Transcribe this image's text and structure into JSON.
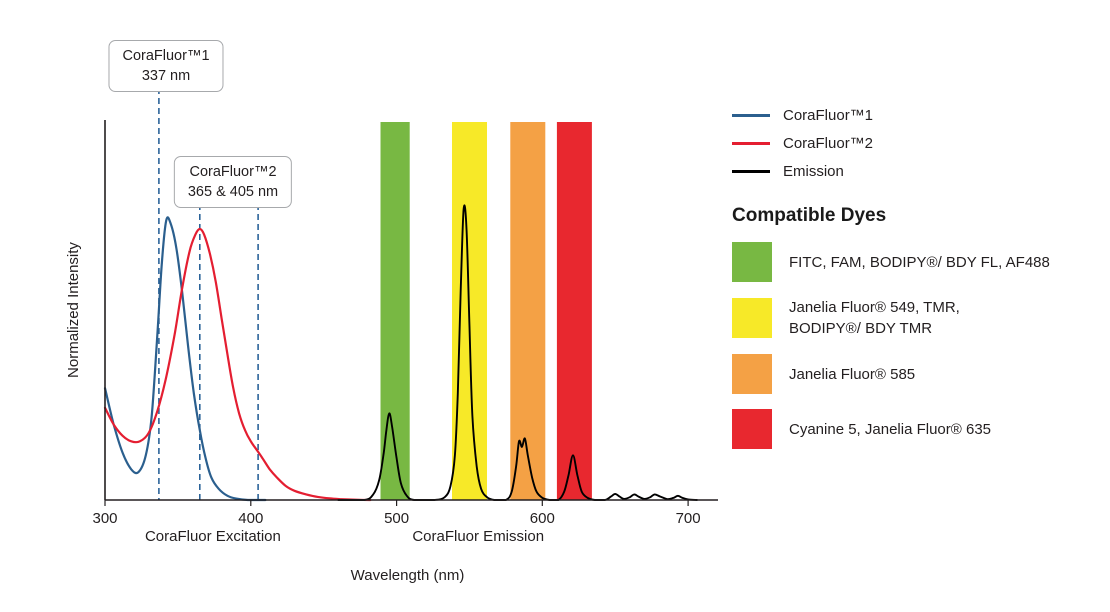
{
  "legend": {
    "items": [
      {
        "label": "CoraFluor™1",
        "color": "#2b5f8e"
      },
      {
        "label": "CoraFluor™2",
        "color": "#e41e31"
      },
      {
        "label": "Emission",
        "color": "#000000"
      }
    ]
  },
  "compatible_dyes": {
    "title": "Compatible Dyes",
    "items": [
      {
        "color": "#78b843",
        "lines": [
          "FITC, FAM, BODIPY®/ BDY FL, AF488"
        ]
      },
      {
        "color": "#f7e928",
        "lines": [
          "Janelia Fluor® 549, TMR,",
          "BODIPY®/ BDY TMR"
        ]
      },
      {
        "color": "#f4a145",
        "lines": [
          "Janelia Fluor® 585"
        ]
      },
      {
        "color": "#e8282f",
        "lines": [
          "Cyanine 5, Janelia Fluor® 635"
        ]
      }
    ]
  },
  "chart_data": {
    "type": "line",
    "title": "",
    "xlabel": "Wavelength (nm)",
    "ylabel": "Normalized Intensity",
    "xlim": [
      300,
      715
    ],
    "ylim": [
      0,
      1.36
    ],
    "x_ticks": [
      300,
      400,
      500,
      600,
      700
    ],
    "x_section_labels": [
      {
        "label": "CoraFluor Excitation",
        "center_nm": 374
      },
      {
        "label": "CoraFluor Emission",
        "center_nm": 556
      }
    ],
    "dash_color": "#2b6399",
    "callouts": [
      {
        "lines": [
          "CoraFluor™1",
          "337 nm"
        ],
        "lines_nm": [
          337
        ]
      },
      {
        "lines": [
          "CoraFluor™2",
          "365 & 405 nm"
        ],
        "lines_nm": [
          365,
          405
        ]
      }
    ],
    "bands": [
      {
        "name": "green",
        "nm": [
          489,
          509
        ],
        "color": "#78b843"
      },
      {
        "name": "yellow",
        "nm": [
          538,
          562
        ],
        "color": "#f7e928"
      },
      {
        "name": "orange",
        "nm": [
          578,
          602
        ],
        "color": "#f4a145"
      },
      {
        "name": "red",
        "nm": [
          610,
          634
        ],
        "color": "#e8282f"
      }
    ],
    "series": [
      {
        "name": "CoraFluor™1 excitation",
        "color": "#2b5f8e",
        "points": [
          [
            300,
            0.4
          ],
          [
            306,
            0.27
          ],
          [
            312,
            0.17
          ],
          [
            318,
            0.11
          ],
          [
            323,
            0.1
          ],
          [
            328,
            0.16
          ],
          [
            332,
            0.3
          ],
          [
            336,
            0.6
          ],
          [
            339,
            0.85
          ],
          [
            342,
            1.0
          ],
          [
            345,
            0.99
          ],
          [
            349,
            0.9
          ],
          [
            353,
            0.74
          ],
          [
            357,
            0.55
          ],
          [
            361,
            0.38
          ],
          [
            365,
            0.25
          ],
          [
            369,
            0.15
          ],
          [
            373,
            0.08
          ],
          [
            378,
            0.04
          ],
          [
            384,
            0.015
          ],
          [
            390,
            0.005
          ],
          [
            398,
            0.0
          ],
          [
            410,
            0.0
          ]
        ]
      },
      {
        "name": "CoraFluor™2 excitation",
        "color": "#e41e31",
        "points": [
          [
            300,
            0.33
          ],
          [
            306,
            0.27
          ],
          [
            312,
            0.23
          ],
          [
            318,
            0.21
          ],
          [
            324,
            0.21
          ],
          [
            330,
            0.24
          ],
          [
            336,
            0.32
          ],
          [
            342,
            0.44
          ],
          [
            348,
            0.6
          ],
          [
            353,
            0.76
          ],
          [
            358,
            0.89
          ],
          [
            362,
            0.95
          ],
          [
            365,
            0.97
          ],
          [
            368,
            0.95
          ],
          [
            372,
            0.88
          ],
          [
            376,
            0.78
          ],
          [
            380,
            0.65
          ],
          [
            384,
            0.52
          ],
          [
            388,
            0.4
          ],
          [
            392,
            0.31
          ],
          [
            396,
            0.25
          ],
          [
            400,
            0.21
          ],
          [
            404,
            0.18
          ],
          [
            408,
            0.15
          ],
          [
            413,
            0.11
          ],
          [
            418,
            0.08
          ],
          [
            424,
            0.05
          ],
          [
            430,
            0.033
          ],
          [
            438,
            0.02
          ],
          [
            446,
            0.011
          ],
          [
            454,
            0.006
          ],
          [
            462,
            0.003
          ],
          [
            472,
            0.001
          ],
          [
            482,
            0.0
          ]
        ]
      },
      {
        "name": "Emission",
        "color": "#000000",
        "points": [
          [
            460,
            0.0
          ],
          [
            478,
            0.0
          ],
          [
            484,
            0.02
          ],
          [
            488,
            0.07
          ],
          [
            491,
            0.16
          ],
          [
            493,
            0.25
          ],
          [
            495,
            0.31
          ],
          [
            497,
            0.26
          ],
          [
            500,
            0.15
          ],
          [
            503,
            0.06
          ],
          [
            507,
            0.015
          ],
          [
            512,
            0.0
          ],
          [
            526,
            0.0
          ],
          [
            533,
            0.01
          ],
          [
            537,
            0.05
          ],
          [
            540,
            0.16
          ],
          [
            542,
            0.38
          ],
          [
            544,
            0.75
          ],
          [
            546,
            1.04
          ],
          [
            548,
            0.97
          ],
          [
            550,
            0.62
          ],
          [
            552,
            0.3
          ],
          [
            555,
            0.12
          ],
          [
            558,
            0.04
          ],
          [
            562,
            0.01
          ],
          [
            567,
            0.0
          ],
          [
            575,
            0.0
          ],
          [
            579,
            0.03
          ],
          [
            582,
            0.12
          ],
          [
            584,
            0.21
          ],
          [
            586,
            0.19
          ],
          [
            588,
            0.22
          ],
          [
            590,
            0.16
          ],
          [
            593,
            0.08
          ],
          [
            596,
            0.03
          ],
          [
            600,
            0.008
          ],
          [
            605,
            0.0
          ],
          [
            611,
            0.0
          ],
          [
            615,
            0.03
          ],
          [
            618,
            0.09
          ],
          [
            621,
            0.16
          ],
          [
            624,
            0.09
          ],
          [
            627,
            0.03
          ],
          [
            631,
            0.008
          ],
          [
            636,
            0.0
          ],
          [
            643,
            0.0
          ],
          [
            647,
            0.012
          ],
          [
            650,
            0.022
          ],
          [
            653,
            0.012
          ],
          [
            656,
            0.004
          ],
          [
            660,
            0.01
          ],
          [
            663,
            0.02
          ],
          [
            666,
            0.012
          ],
          [
            670,
            0.004
          ],
          [
            674,
            0.01
          ],
          [
            677,
            0.02
          ],
          [
            681,
            0.012
          ],
          [
            686,
            0.003
          ],
          [
            690,
            0.008
          ],
          [
            693,
            0.015
          ],
          [
            696,
            0.008
          ],
          [
            700,
            0.002
          ],
          [
            706,
            0.0
          ]
        ]
      }
    ]
  }
}
